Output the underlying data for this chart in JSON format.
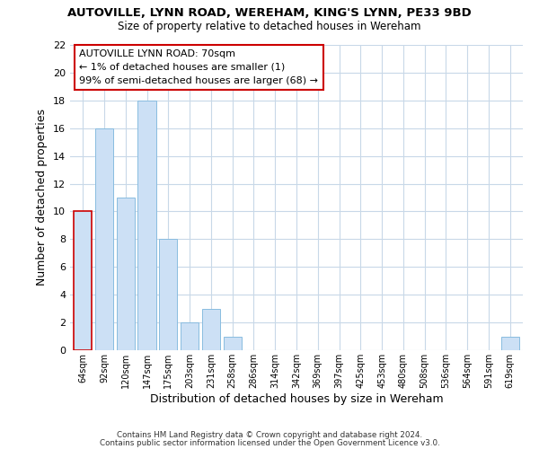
{
  "title": "AUTOVILLE, LYNN ROAD, WEREHAM, KING'S LYNN, PE33 9BD",
  "subtitle": "Size of property relative to detached houses in Wereham",
  "xlabel": "Distribution of detached houses by size in Wereham",
  "ylabel": "Number of detached properties",
  "bar_color": "#cce0f5",
  "bar_edge_color": "#89bde0",
  "highlight_bar_edge_color": "#cc0000",
  "categories": [
    "64sqm",
    "92sqm",
    "120sqm",
    "147sqm",
    "175sqm",
    "203sqm",
    "231sqm",
    "258sqm",
    "286sqm",
    "314sqm",
    "342sqm",
    "369sqm",
    "397sqm",
    "425sqm",
    "453sqm",
    "480sqm",
    "508sqm",
    "536sqm",
    "564sqm",
    "591sqm",
    "619sqm"
  ],
  "values": [
    10,
    16,
    11,
    18,
    8,
    2,
    3,
    1,
    0,
    0,
    0,
    0,
    0,
    0,
    0,
    0,
    0,
    0,
    0,
    0,
    1
  ],
  "highlight_index": 0,
  "ylim": [
    0,
    22
  ],
  "yticks": [
    0,
    2,
    4,
    6,
    8,
    10,
    12,
    14,
    16,
    18,
    20,
    22
  ],
  "annotation_title": "AUTOVILLE LYNN ROAD: 70sqm",
  "annotation_line1": "← 1% of detached houses are smaller (1)",
  "annotation_line2": "99% of semi-detached houses are larger (68) →",
  "footer_line1": "Contains HM Land Registry data © Crown copyright and database right 2024.",
  "footer_line2": "Contains public sector information licensed under the Open Government Licence v3.0.",
  "background_color": "#ffffff",
  "grid_color": "#c8d8e8"
}
